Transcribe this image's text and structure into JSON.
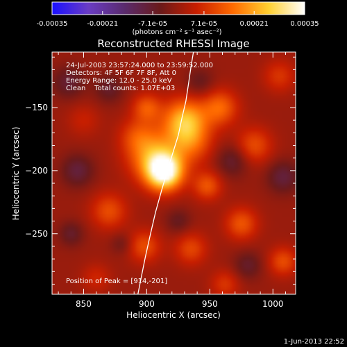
{
  "colorbar": {
    "ticks": [
      "-0.00035",
      "-0.00021",
      "-7.1e-05",
      "7.1e-05",
      "0.00021",
      "0.00035"
    ],
    "tick_values": [
      -0.00035,
      -0.00021,
      -7.1e-05,
      7.1e-05,
      0.00021,
      0.00035
    ],
    "range": [
      -0.00035,
      0.00035
    ],
    "unit_label": "(photons cm⁻² s⁻¹ asec⁻²)",
    "colors": [
      "#1a10ff",
      "#6a3cc4",
      "#5a2b6e",
      "#6a1a1a",
      "#c81e00",
      "#ff6a00",
      "#ffd030",
      "#ffffff"
    ]
  },
  "chart_data": {
    "type": "heatmap",
    "title": "Reconstructed RHESSI Image",
    "xlabel": "Heliocentric X (arcsec)",
    "ylabel": "Heliocentric Y (arcsec)",
    "xlim": [
      825,
      1018
    ],
    "ylim": [
      -298,
      -106
    ],
    "x_ticks": [
      850,
      900,
      950,
      1000
    ],
    "y_ticks": [
      -250,
      -200,
      -150
    ],
    "x_tick_labels": [
      "850",
      "900",
      "950",
      "1000"
    ],
    "y_tick_labels": [
      "−250",
      "−200",
      "−150"
    ],
    "annotations": [
      "24-Jul-2003 23:57:24.000 to 23:59:52.000",
      "Detectors: 4F 5F 6F 7F 8F, Att 0",
      "Energy Range: 12.0 - 25.0 keV",
      "Clean    Total counts: 1.07E+03"
    ],
    "peak_label": "Position of Peak = [914,-201]",
    "peak": [
      914,
      -201
    ],
    "limb_curve": {
      "x": [
        893,
        896,
        899,
        903,
        907,
        912,
        917,
        921,
        925,
        928,
        931,
        933,
        935,
        937
      ],
      "y": [
        -298,
        -283,
        -268,
        -250,
        -233,
        -215,
        -198,
        -185,
        -172,
        -158,
        -145,
        -132,
        -118,
        -106
      ]
    },
    "sources": [
      {
        "x": 914,
        "y": -201,
        "sigma": 10,
        "amp": 0.00035
      },
      {
        "x": 905,
        "y": -188,
        "sigma": 14,
        "amp": 0.00018
      },
      {
        "x": 930,
        "y": -160,
        "sigma": 12,
        "amp": 0.00022
      },
      {
        "x": 958,
        "y": -150,
        "sigma": 10,
        "amp": 0.00014
      },
      {
        "x": 935,
        "y": -178,
        "sigma": 12,
        "amp": 0.00012
      },
      {
        "x": 900,
        "y": -150,
        "sigma": 8,
        "amp": 0.00012
      },
      {
        "x": 892,
        "y": -172,
        "sigma": 10,
        "amp": 8e-05
      },
      {
        "x": 948,
        "y": -212,
        "sigma": 8,
        "amp": 0.00012
      },
      {
        "x": 870,
        "y": -232,
        "sigma": 10,
        "amp": 0.00011
      },
      {
        "x": 898,
        "y": -260,
        "sigma": 9,
        "amp": 0.00011
      },
      {
        "x": 935,
        "y": -262,
        "sigma": 9,
        "amp": 0.0001
      },
      {
        "x": 975,
        "y": -242,
        "sigma": 9,
        "amp": 0.00012
      },
      {
        "x": 985,
        "y": -180,
        "sigma": 10,
        "amp": 0.00011
      },
      {
        "x": 1008,
        "y": -272,
        "sigma": 8,
        "amp": 0.00011
      },
      {
        "x": 860,
        "y": -285,
        "sigma": 8,
        "amp": 6e-05
      },
      {
        "x": 962,
        "y": -290,
        "sigma": 8,
        "amp": 8e-05
      },
      {
        "x": 850,
        "y": -160,
        "sigma": 9,
        "amp": 5e-05
      },
      {
        "x": 1005,
        "y": -125,
        "sigma": 9,
        "amp": 8e-05
      },
      {
        "x": 845,
        "y": -200,
        "sigma": 9,
        "amp": -9e-05
      },
      {
        "x": 838,
        "y": -130,
        "sigma": 9,
        "amp": -8e-05
      },
      {
        "x": 870,
        "y": -135,
        "sigma": 8,
        "amp": -7e-05
      },
      {
        "x": 942,
        "y": -130,
        "sigma": 8,
        "amp": -6e-05
      },
      {
        "x": 968,
        "y": -192,
        "sigma": 9,
        "amp": -8e-05
      },
      {
        "x": 1008,
        "y": -205,
        "sigma": 9,
        "amp": -9e-05
      },
      {
        "x": 980,
        "y": -275,
        "sigma": 8,
        "amp": -7e-05
      },
      {
        "x": 925,
        "y": -240,
        "sigma": 7,
        "amp": -6e-05
      },
      {
        "x": 880,
        "y": -258,
        "sigma": 6,
        "amp": -5e-05
      },
      {
        "x": 840,
        "y": -250,
        "sigma": 7,
        "amp": -7e-05
      }
    ]
  },
  "timestamp": "1-Jun-2013 22:52"
}
